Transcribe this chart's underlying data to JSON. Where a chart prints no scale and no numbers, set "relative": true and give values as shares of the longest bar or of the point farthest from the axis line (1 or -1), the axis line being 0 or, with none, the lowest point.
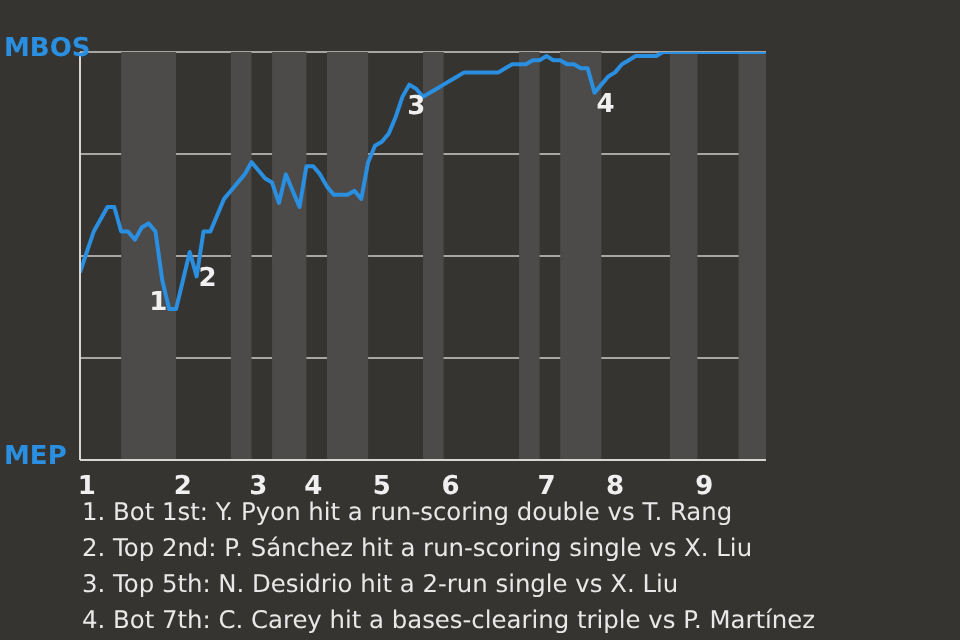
{
  "chart_data": {
    "type": "line",
    "relative": true,
    "categories": [
      null,
      "1",
      null,
      null,
      null,
      null,
      null,
      null,
      null,
      null,
      null,
      null,
      null,
      null,
      null,
      "2",
      null,
      null,
      null,
      null,
      null,
      null,
      null,
      null,
      null,
      null,
      "3",
      null,
      null,
      null,
      null,
      null,
      null,
      null,
      "4",
      null,
      null,
      null,
      null,
      null,
      null,
      null,
      null,
      null,
      "5",
      null,
      null,
      null,
      null,
      null,
      null,
      null,
      null,
      null,
      "6",
      null,
      null,
      null,
      null,
      null,
      null,
      null,
      null,
      null,
      null,
      null,
      null,
      null,
      "7",
      null,
      null,
      null,
      null,
      null,
      null,
      null,
      null,
      null,
      "8",
      null,
      null,
      null,
      null,
      null,
      null,
      null,
      null,
      null,
      null,
      null,
      null,
      "9",
      null,
      null,
      null,
      null,
      null,
      null,
      null,
      null,
      null
    ],
    "series": [
      {
        "color": "#2a8fe0",
        "values": [
          0.46,
          0.51,
          0.56,
          0.59,
          0.62,
          0.62,
          0.56,
          0.56,
          0.54,
          0.57,
          0.58,
          0.56,
          0.44,
          0.37,
          0.37,
          0.44,
          0.51,
          0.45,
          0.56,
          0.56,
          0.6,
          0.64,
          0.66,
          0.68,
          0.7,
          0.73,
          0.71,
          0.69,
          0.68,
          0.63,
          0.7,
          0.66,
          0.62,
          0.72,
          0.72,
          0.7,
          0.67,
          0.65,
          0.65,
          0.65,
          0.66,
          0.64,
          0.73,
          0.77,
          0.78,
          0.8,
          0.84,
          0.89,
          0.92,
          0.91,
          0.89,
          0.9,
          0.91,
          0.92,
          0.93,
          0.94,
          0.95,
          0.95,
          0.95,
          0.95,
          0.95,
          0.95,
          0.96,
          0.97,
          0.97,
          0.97,
          0.98,
          0.98,
          0.99,
          0.98,
          0.98,
          0.97,
          0.97,
          0.96,
          0.96,
          0.9,
          0.92,
          0.94,
          0.95,
          0.97,
          0.98,
          0.99,
          0.99,
          0.99,
          0.99,
          1,
          1,
          1,
          1,
          1,
          1,
          1,
          1,
          1,
          1,
          1,
          1,
          1,
          1,
          1,
          1
        ]
      }
    ],
    "grid": "y",
    "legend": false,
    "marker": "none",
    "line_style": "solid",
    "annotations": [
      "MBOS",
      "MEP",
      {
        "text": "1",
        "y": 0.37
      },
      {
        "text": "2",
        "y": 0.45
      },
      {
        "text": "3",
        "y": 0.92
      },
      {
        "text": "4",
        "y": 0.9
      },
      "1. Bot 1st: Y. Pyon hit a run-scoring double vs T. Rang",
      "2. Top 2nd: P. Sánchez hit a run-scoring single vs X. Liu",
      "3. Top 5th: N. Desidrio hit a 2-run single vs X. Liu",
      "4. Bot 7th: C. Carey hit a bases-clearing triple vs P. Martínez"
    ]
  }
}
